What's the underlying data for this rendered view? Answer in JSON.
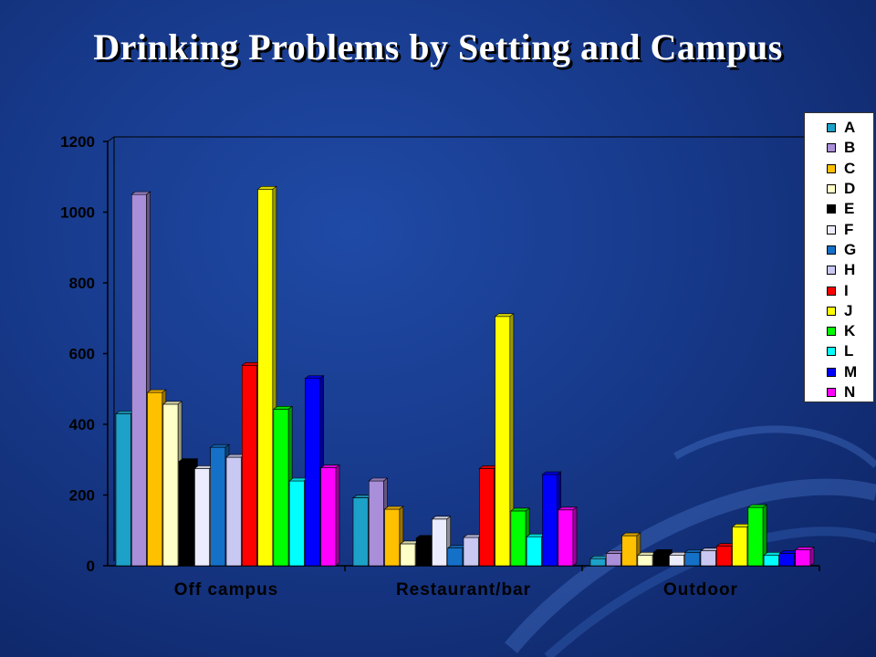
{
  "slide": {
    "title": "Drinking Problems by Setting and Campus"
  },
  "chart_data": {
    "type": "bar",
    "title": "",
    "xlabel": "",
    "ylabel": "",
    "ylim": [
      0,
      1200
    ],
    "yticks": [
      0,
      200,
      400,
      600,
      800,
      1000,
      1200
    ],
    "grid": false,
    "legend_position": "right",
    "categories": [
      "Off campus",
      "Restaurant/bar",
      "Outdoor"
    ],
    "series": [
      {
        "name": "A",
        "color": "#1da1c8",
        "values": [
          430,
          192,
          20
        ]
      },
      {
        "name": "B",
        "color": "#a98ed9",
        "values": [
          1050,
          240,
          35
        ]
      },
      {
        "name": "C",
        "color": "#ffc000",
        "values": [
          490,
          160,
          85
        ]
      },
      {
        "name": "D",
        "color": "#ffffc8",
        "values": [
          457,
          62,
          30
        ]
      },
      {
        "name": "E",
        "color": "#000000",
        "values": [
          295,
          78,
          38
        ]
      },
      {
        "name": "F",
        "color": "#ececff",
        "values": [
          275,
          132,
          30
        ]
      },
      {
        "name": "G",
        "color": "#1570c8",
        "values": [
          335,
          50,
          38
        ]
      },
      {
        "name": "H",
        "color": "#c8c8f2",
        "values": [
          307,
          80,
          42
        ]
      },
      {
        "name": "I",
        "color": "#ff0000",
        "values": [
          567,
          275,
          55
        ]
      },
      {
        "name": "J",
        "color": "#ffff00",
        "values": [
          1065,
          705,
          110
        ]
      },
      {
        "name": "K",
        "color": "#00ff00",
        "values": [
          443,
          155,
          165
        ]
      },
      {
        "name": "L",
        "color": "#00ffff",
        "values": [
          240,
          82,
          30
        ]
      },
      {
        "name": "M",
        "color": "#0000ff",
        "values": [
          530,
          258,
          35
        ]
      },
      {
        "name": "N",
        "color": "#ff00ff",
        "values": [
          277,
          158,
          45
        ]
      }
    ]
  }
}
